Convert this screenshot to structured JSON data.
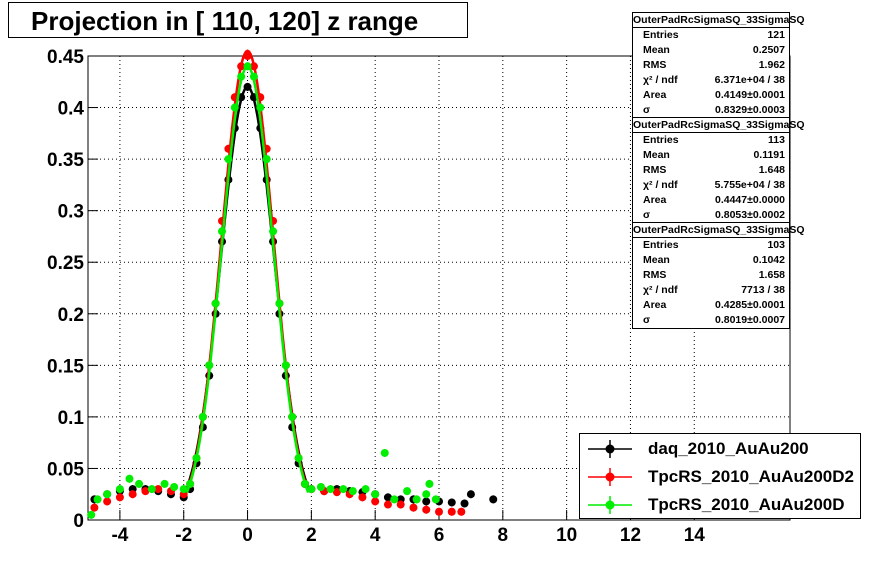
{
  "title": "Projection in [ 110, 120] z range",
  "stats_boxes": [
    {
      "name": "OuterPadRcSigmaSQ_33SigmaSQ",
      "rows": [
        [
          "Entries",
          "121"
        ],
        [
          "Mean",
          "0.2507"
        ],
        [
          "RMS",
          "1.962"
        ],
        [
          "χ² / ndf",
          "6.371e+04 / 38"
        ],
        [
          "Area",
          "0.4149±0.0001"
        ],
        [
          "σ",
          "0.8329±0.0003"
        ]
      ]
    },
    {
      "name": "OuterPadRcSigmaSQ_33SigmaSQ",
      "rows": [
        [
          "Entries",
          "113"
        ],
        [
          "Mean",
          "0.1191"
        ],
        [
          "RMS",
          "1.648"
        ],
        [
          "χ² / ndf",
          "5.755e+04 / 38"
        ],
        [
          "Area",
          "0.4447±0.0000"
        ],
        [
          "σ",
          "0.8053±0.0002"
        ]
      ]
    },
    {
      "name": "OuterPadRcSigmaSQ_33SigmaSQ",
      "rows": [
        [
          "Entries",
          "103"
        ],
        [
          "Mean",
          "0.1042"
        ],
        [
          "RMS",
          "1.658"
        ],
        [
          "χ² / ndf",
          "7713 / 38"
        ],
        [
          "Area",
          "0.4285±0.0001"
        ],
        [
          "σ",
          "0.8019±0.0007"
        ]
      ]
    }
  ],
  "legend": [
    {
      "label": "daq_2010_AuAu200",
      "color": "#000000"
    },
    {
      "label": "TpcRS_2010_AuAu200D2",
      "color": "#ff0000"
    },
    {
      "label": "TpcRS_2010_AuAu200D",
      "color": "#00ee00"
    }
  ],
  "chart_data": {
    "type": "scatter",
    "title": "Projection in [ 110, 120] z range",
    "xlim": [
      -5,
      17
    ],
    "ylim": [
      0,
      0.45
    ],
    "x_ticks": [
      -4,
      -2,
      0,
      2,
      4,
      6,
      8,
      10,
      12,
      14
    ],
    "y_ticks": [
      0,
      0.05,
      0.1,
      0.15,
      0.2,
      0.25,
      0.3,
      0.35,
      0.4,
      0.45
    ],
    "y_tick_labels": [
      "0",
      "0.05",
      "0.1",
      "0.15",
      "0.2",
      "0.25",
      "0.3",
      "0.35",
      "0.4",
      "0.45"
    ],
    "grid": true,
    "legend_position": "bottom-right",
    "series": [
      {
        "name": "daq_2010_AuAu200",
        "color": "#000000",
        "x": [
          -4.8,
          -4.4,
          -4.0,
          -3.6,
          -3.2,
          -2.8,
          -2.4,
          -2.0,
          -1.8,
          -1.6,
          -1.4,
          -1.2,
          -1.0,
          -0.8,
          -0.6,
          -0.4,
          -0.2,
          0.0,
          0.2,
          0.4,
          0.6,
          0.8,
          1.0,
          1.2,
          1.4,
          1.6,
          1.8,
          2.0,
          2.4,
          2.8,
          3.2,
          3.6,
          4.0,
          4.4,
          4.8,
          5.2,
          5.6,
          6.0,
          6.4,
          6.8,
          7.0,
          7.7
        ],
        "y": [
          0.02,
          0.025,
          0.028,
          0.03,
          0.03,
          0.028,
          0.025,
          0.022,
          0.03,
          0.055,
          0.09,
          0.14,
          0.2,
          0.27,
          0.33,
          0.38,
          0.41,
          0.42,
          0.41,
          0.38,
          0.33,
          0.27,
          0.2,
          0.14,
          0.09,
          0.055,
          0.035,
          0.03,
          0.028,
          0.03,
          0.028,
          0.027,
          0.025,
          0.022,
          0.02,
          0.02,
          0.018,
          0.018,
          0.017,
          0.016,
          0.025,
          0.02
        ],
        "fit": {
          "sigma": 0.8329,
          "peak": 0.42
        }
      },
      {
        "name": "TpcRS_2010_AuAu200D2",
        "color": "#ff0000",
        "x": [
          -4.8,
          -4.4,
          -4.0,
          -3.6,
          -3.2,
          -2.8,
          -2.4,
          -2.0,
          -1.8,
          -1.6,
          -1.4,
          -1.2,
          -1.0,
          -0.8,
          -0.6,
          -0.4,
          -0.2,
          0.0,
          0.2,
          0.4,
          0.6,
          0.8,
          1.0,
          1.2,
          1.4,
          1.6,
          1.8,
          2.0,
          2.4,
          2.8,
          3.2,
          3.6,
          4.0,
          4.4,
          4.8,
          5.2,
          5.6,
          6.0,
          6.4,
          6.7
        ],
        "y": [
          0.012,
          0.018,
          0.022,
          0.025,
          0.028,
          0.03,
          0.028,
          0.025,
          0.035,
          0.06,
          0.1,
          0.15,
          0.21,
          0.29,
          0.36,
          0.41,
          0.44,
          0.45,
          0.44,
          0.41,
          0.36,
          0.29,
          0.21,
          0.15,
          0.1,
          0.06,
          0.035,
          0.03,
          0.028,
          0.027,
          0.025,
          0.022,
          0.018,
          0.015,
          0.015,
          0.012,
          0.01,
          0.008,
          0.008,
          0.008
        ],
        "fit": {
          "sigma": 0.8053,
          "peak": 0.455
        }
      },
      {
        "name": "TpcRS_2010_AuAu200D",
        "color": "#00ee00",
        "x": [
          -4.9,
          -4.7,
          -4.4,
          -4.0,
          -3.7,
          -3.4,
          -3.0,
          -2.6,
          -2.3,
          -2.0,
          -1.8,
          -1.6,
          -1.4,
          -1.2,
          -1.0,
          -0.8,
          -0.6,
          -0.4,
          -0.2,
          0.0,
          0.2,
          0.4,
          0.6,
          0.8,
          1.0,
          1.2,
          1.4,
          1.6,
          1.8,
          2.0,
          2.3,
          2.6,
          3.0,
          3.3,
          3.7,
          4.0,
          4.3,
          4.6,
          5.0,
          5.3,
          5.6,
          5.7,
          5.9
        ],
        "y": [
          0.005,
          0.02,
          0.025,
          0.03,
          0.04,
          0.035,
          0.03,
          0.035,
          0.032,
          0.03,
          0.035,
          0.06,
          0.1,
          0.15,
          0.21,
          0.28,
          0.35,
          0.4,
          0.43,
          0.44,
          0.43,
          0.4,
          0.35,
          0.28,
          0.21,
          0.15,
          0.1,
          0.06,
          0.035,
          0.03,
          0.032,
          0.03,
          0.03,
          0.028,
          0.03,
          0.025,
          0.065,
          0.02,
          0.028,
          0.02,
          0.025,
          0.035,
          0.02
        ],
        "fit": {
          "sigma": 0.8019,
          "peak": 0.44
        }
      }
    ]
  }
}
